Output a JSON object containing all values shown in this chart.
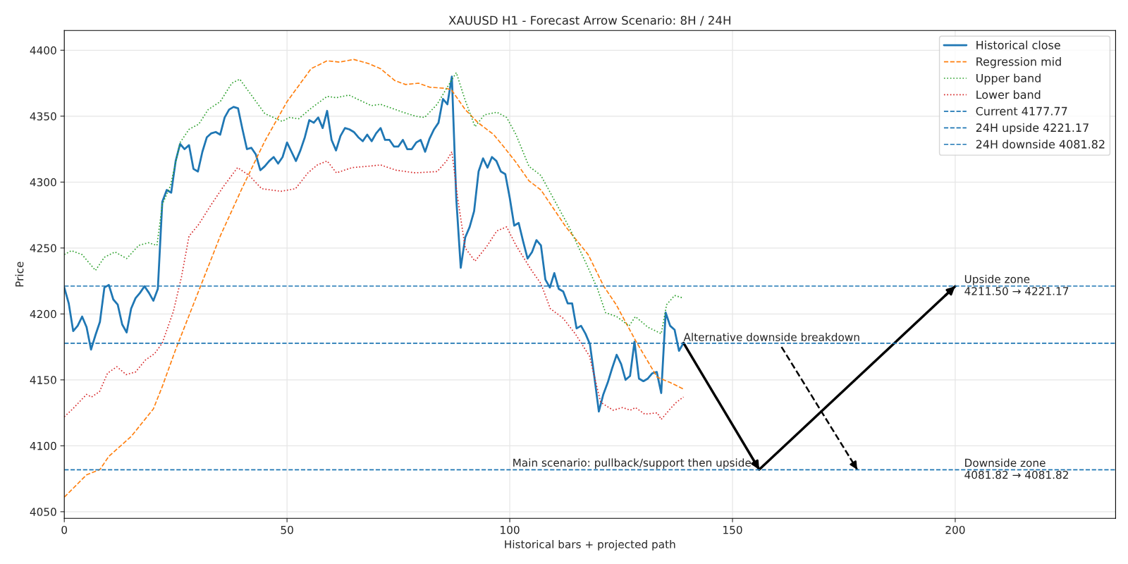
{
  "chart_data": {
    "type": "line",
    "title": "XAUUSD H1 - Forecast Arrow Scenario: 8H / 24H",
    "xlabel": "Historical bars + projected path",
    "ylabel": "Price",
    "xlim": [
      0,
      236
    ],
    "ylim": [
      4045,
      4415
    ],
    "xticks": [
      0,
      50,
      100,
      150,
      200
    ],
    "yticks": [
      4050,
      4100,
      4150,
      4200,
      4250,
      4300,
      4350,
      4400
    ],
    "grid": true,
    "legend": "top right",
    "series": [
      {
        "name": "Historical close",
        "color": "#1f77b4",
        "line_style": "solid",
        "x": [
          0,
          1,
          2,
          3,
          4,
          5,
          6,
          7,
          8,
          9,
          10,
          11,
          12,
          13,
          14,
          15,
          16,
          17,
          18,
          19,
          20,
          21,
          22,
          23,
          24,
          25,
          26,
          27,
          28,
          29,
          30,
          31,
          32,
          33,
          34,
          35,
          36,
          37,
          38,
          39,
          40,
          41,
          42,
          43,
          44,
          45,
          46,
          47,
          48,
          49,
          50,
          51,
          52,
          53,
          54,
          55,
          56,
          57,
          58,
          59,
          60,
          61,
          62,
          63,
          64,
          65,
          66,
          67,
          68,
          69,
          70,
          71,
          72,
          73,
          74,
          75,
          76,
          77,
          78,
          79,
          80,
          81,
          82,
          83,
          84,
          85,
          86,
          87,
          88,
          89,
          90,
          91,
          92,
          93,
          94,
          95,
          96,
          97,
          98,
          99,
          100,
          101,
          102,
          103,
          104,
          105,
          106,
          107,
          108,
          109,
          110,
          111,
          112,
          113,
          114,
          115,
          116,
          117,
          118,
          119,
          120,
          121,
          122,
          123,
          124,
          125,
          126,
          127,
          128,
          129,
          130,
          131,
          132,
          133,
          134,
          135,
          136,
          137,
          138,
          139
        ],
        "values": [
          4220,
          4208,
          4187,
          4191,
          4198,
          4190,
          4173,
          4184,
          4194,
          4220,
          4222,
          4211,
          4207,
          4192,
          4186,
          4204,
          4212,
          4216,
          4221,
          4216,
          4210,
          4219,
          4285,
          4294,
          4292,
          4316,
          4329,
          4325,
          4328,
          4310,
          4308,
          4323,
          4334,
          4337,
          4338,
          4336,
          4349,
          4355,
          4357,
          4356,
          4340,
          4325,
          4326,
          4321,
          4309,
          4312,
          4316,
          4319,
          4314,
          4319,
          4330,
          4323,
          4316,
          4324,
          4334,
          4347,
          4345,
          4349,
          4341,
          4354,
          4332,
          4324,
          4335,
          4341,
          4340,
          4338,
          4334,
          4331,
          4336,
          4331,
          4337,
          4341,
          4332,
          4332,
          4327,
          4327,
          4332,
          4325,
          4325,
          4330,
          4332,
          4323,
          4333,
          4340,
          4345,
          4363,
          4359,
          4380,
          4287,
          4235,
          4258,
          4266,
          4278,
          4308,
          4318,
          4311,
          4319,
          4316,
          4308,
          4306,
          4288,
          4267,
          4269,
          4255,
          4242,
          4247,
          4256,
          4252,
          4226,
          4220,
          4231,
          4219,
          4217,
          4208,
          4208,
          4189,
          4191,
          4185,
          4177,
          4152,
          4126,
          4139,
          4148,
          4159,
          4169,
          4162,
          4150,
          4153,
          4179,
          4151,
          4149,
          4151,
          4155,
          4156,
          4140,
          4201,
          4191,
          4188,
          4172,
          4178
        ]
      },
      {
        "name": "Regression mid",
        "color": "#ff7f0e",
        "line_style": "dashed",
        "x": [
          0,
          5,
          8,
          10,
          15,
          20,
          22,
          25,
          30,
          35,
          40,
          45,
          50,
          55.4,
          59,
          61.8,
          65,
          68.2,
          71,
          74.2,
          76.6,
          79.5,
          82,
          85.8,
          86.9,
          90,
          92.9,
          96.4,
          98.6,
          101.4,
          104.3,
          107,
          112.6,
          117.6,
          121.1,
          123.9,
          128.2,
          133.1,
          136,
          139
        ],
        "values": [
          4061,
          4078,
          4082,
          4092,
          4107,
          4128,
          4145,
          4173,
          4216,
          4259,
          4296,
          4331,
          4361,
          4386,
          4392,
          4391,
          4393,
          4390,
          4386,
          4377,
          4374,
          4375,
          4372,
          4371,
          4370,
          4355,
          4345,
          4336,
          4327,
          4315,
          4301,
          4294,
          4266,
          4245,
          4221,
          4207,
          4180,
          4152,
          4148,
          4143
        ]
      },
      {
        "name": "Upper band",
        "color": "#2ca02c",
        "line_style": "dotted",
        "x": [
          0,
          1.6,
          4,
          7,
          9,
          11.4,
          14,
          16.7,
          18.9,
          20.8,
          22,
          23.8,
          26,
          28,
          30.2,
          32.3,
          35,
          37.6,
          39.4,
          42.2,
          45,
          48.9,
          50.5,
          52.6,
          55.4,
          59,
          61.1,
          63.9,
          68.9,
          71,
          76,
          78.8,
          80.9,
          83.7,
          85.8,
          88,
          90,
          92.2,
          94.3,
          97.1,
          99.3,
          101.4,
          104.3,
          107,
          109.9,
          113.3,
          117.6,
          119.7,
          121.5,
          124,
          126.8,
          128.2,
          131,
          134,
          135.2,
          137,
          139
        ],
        "values": [
          4245,
          4248,
          4245,
          4233,
          4243,
          4247,
          4242,
          4252,
          4254,
          4252,
          4283,
          4297,
          4330,
          4340,
          4344,
          4355,
          4361,
          4375,
          4378,
          4365,
          4352,
          4346,
          4349,
          4348,
          4356,
          4365,
          4364,
          4366,
          4358,
          4359,
          4353,
          4350,
          4349,
          4359,
          4371,
          4383,
          4362,
          4342,
          4351,
          4353,
          4349,
          4336,
          4312,
          4305,
          4287,
          4266,
          4235,
          4219,
          4201,
          4198,
          4191,
          4198,
          4190,
          4185,
          4207,
          4214,
          4212
        ]
      },
      {
        "name": "Lower band",
        "color": "#d62728",
        "line_style": "dotted",
        "x": [
          0,
          1.9,
          5,
          6.1,
          7.9,
          9.7,
          11.8,
          13.9,
          16,
          18.2,
          20.3,
          22,
          24.5,
          26.3,
          28,
          30.2,
          33,
          35.8,
          38.9,
          41.5,
          44.3,
          48.6,
          51.9,
          54.7,
          56.8,
          59,
          61.1,
          64.6,
          68.2,
          71,
          74.5,
          78.8,
          83.7,
          85.8,
          87,
          88.3,
          90,
          92.2,
          95,
          97.1,
          99.3,
          101.4,
          104.9,
          107,
          109.1,
          111.9,
          114.7,
          117.9,
          120.4,
          123.2,
          125.3,
          127.1,
          128.2,
          130.3,
          133.1,
          134,
          136,
          137.4,
          139
        ],
        "values": [
          4122,
          4128,
          4139,
          4137,
          4141,
          4155,
          4160,
          4154,
          4156,
          4165,
          4170,
          4178,
          4202,
          4228,
          4259,
          4268,
          4283,
          4297,
          4311,
          4305,
          4295,
          4293,
          4295,
          4307,
          4313,
          4316,
          4307,
          4311,
          4312,
          4313,
          4309,
          4307,
          4308,
          4316,
          4323,
          4288,
          4250,
          4240,
          4252,
          4263,
          4266,
          4252,
          4233,
          4223,
          4204,
          4197,
          4185,
          4168,
          4133,
          4127,
          4129,
          4127,
          4129,
          4124,
          4125,
          4120,
          4128,
          4133,
          4137
        ]
      },
      {
        "type": "line",
        "color": "#000000",
        "line_style": "solid",
        "x": [
          139,
          156,
          200
        ],
        "values": [
          4178,
          4082,
          4221
        ]
      },
      {
        "type": "line",
        "color": "#000000",
        "line_style": "dashed",
        "x": [
          161,
          178
        ],
        "values": [
          4175,
          4082
        ]
      }
    ],
    "ref_lines": [
      {
        "axis": "y",
        "value": 4177.77,
        "label": "Current 4177.77",
        "color": "#1f77b4",
        "line_style": "dashed"
      },
      {
        "axis": "y",
        "value": 4221.17,
        "label": "24H upside 4221.17",
        "color": "#1f77b4",
        "line_style": "dashed"
      },
      {
        "axis": "y",
        "value": 4081.82,
        "label": "24H downside 4081.82",
        "color": "#1f77b4",
        "line_style": "dashed"
      }
    ],
    "annotations": [
      {
        "text": "Alternative downside breakdown",
        "x": 139,
        "y": 4177.77
      },
      {
        "text": "Main scenario: pullback/support then upside",
        "x": 156,
        "y": 4081.82
      },
      {
        "text": "Upside zone\n4211.50 → 4221.17",
        "x": 202,
        "y": 4221.17
      },
      {
        "text": "Downside zone\n4081.82 → 4081.82",
        "x": 202,
        "y": 4081.82
      }
    ]
  }
}
